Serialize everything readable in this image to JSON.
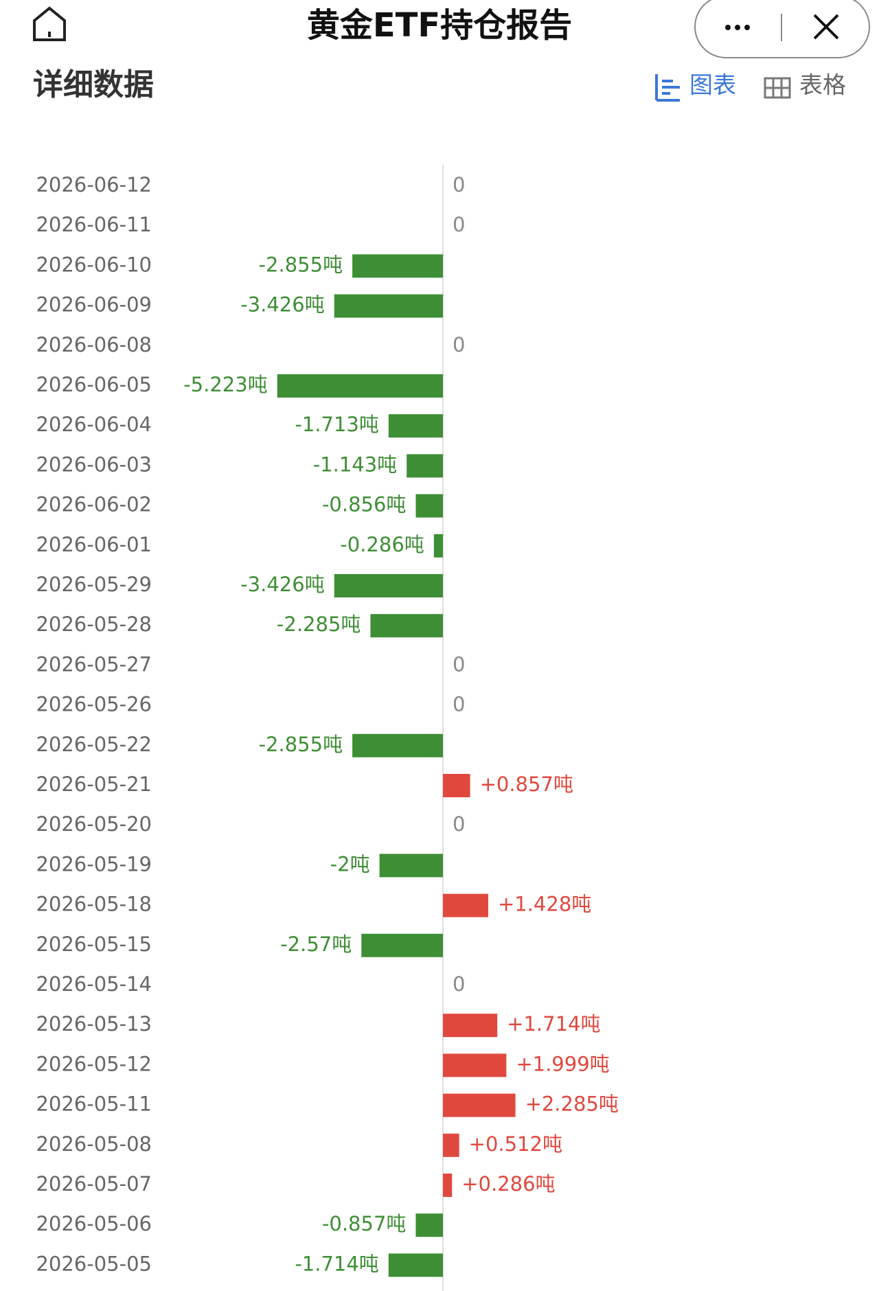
{
  "header": {
    "title": "黄金ETF持仓报告"
  },
  "section_title": "详细数据",
  "view_tabs": [
    "图表",
    "表格"
  ],
  "chart_data": {
    "type": "bar",
    "orientation": "horizontal",
    "categories": [
      "2026-06-12",
      "2026-06-11",
      "2026-06-10",
      "2026-06-09",
      "2026-06-08",
      "2026-06-05",
      "2026-06-04",
      "2026-06-03",
      "2026-06-02",
      "2026-06-01",
      "2026-05-29",
      "2026-05-28",
      "2026-05-27",
      "2026-05-26",
      "2026-05-22",
      "2026-05-21",
      "2026-05-20",
      "2026-05-19",
      "2026-05-18",
      "2026-05-15",
      "2026-05-14",
      "2026-05-13",
      "2026-05-12",
      "2026-05-11",
      "2026-05-08",
      "2026-05-07",
      "2026-05-06",
      "2026-05-05"
    ],
    "values": [
      0,
      0,
      -2.855,
      -3.426,
      0,
      -5.223,
      -1.713,
      -1.143,
      -0.856,
      -0.286,
      -3.426,
      -2.285,
      0,
      0,
      -2.855,
      0.857,
      0,
      -2,
      1.428,
      -2.57,
      0,
      1.714,
      1.999,
      2.285,
      0.512,
      0.286,
      -0.857,
      -1.714
    ],
    "value_labels": [
      "0",
      "0",
      "-2.855吨",
      "-3.426吨",
      "0",
      "-5.223吨",
      "-1.713吨",
      "-1.143吨",
      "-0.856吨",
      "-0.286吨",
      "-3.426吨",
      "-2.285吨",
      "0",
      "0",
      "-2.855吨",
      "+0.857吨",
      "0",
      "-2吨",
      "+1.428吨",
      "-2.57吨",
      "0",
      "+1.714吨",
      "+1.999吨",
      "+2.285吨",
      "+0.512吨",
      "+0.286吨",
      "-0.857吨",
      "-1.714吨"
    ],
    "positive_color": "#e0483e",
    "negative_color": "#3e8e35"
  }
}
